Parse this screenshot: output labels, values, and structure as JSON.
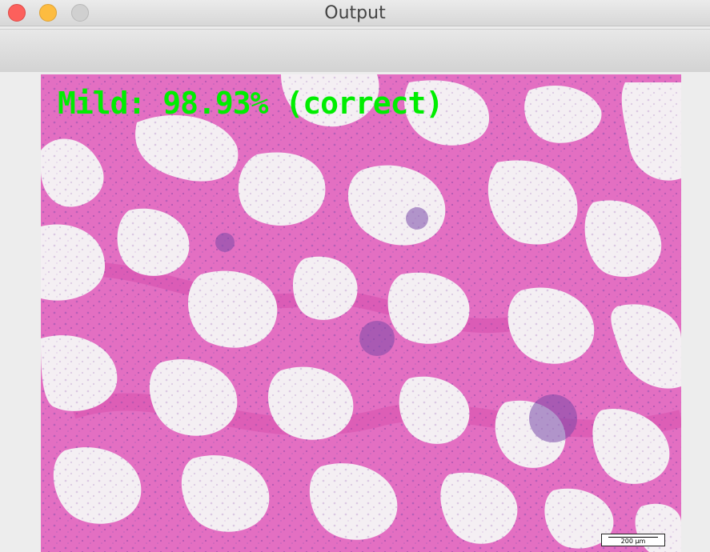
{
  "window": {
    "title": "Output"
  },
  "colors": {
    "tissue": "#e572c4",
    "tissue_dark": "#d24fae",
    "background_white": "#f3eef2",
    "nuclei": "#7a4aa8",
    "overlay_text": "#00ee00"
  },
  "image": {
    "subject": "histology tissue section",
    "overlay_label": "Mild: 98.93% (correct)",
    "scale_bar_label": "200 µm"
  }
}
